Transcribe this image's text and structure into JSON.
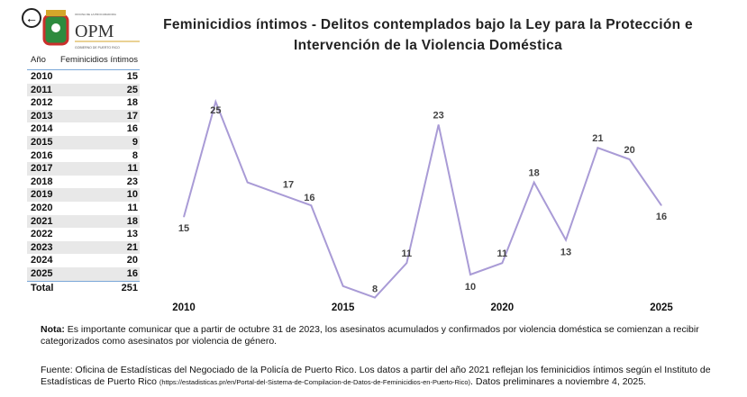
{
  "title": "Feminicidios íntimos - Delitos contemplados bajo la Ley para la Protección e Intervención de la Violencia Doméstica",
  "logo": {
    "text": "OPM",
    "subtitle": "GOBIERNO DE PUERTO RICO",
    "top_text": "OFICINA DE LA PROCURADORA DE LAS MUJERES"
  },
  "table": {
    "headers": [
      "Año",
      "Feminicidios íntimos"
    ],
    "rows": [
      [
        "2010",
        "15"
      ],
      [
        "2011",
        "25"
      ],
      [
        "2012",
        "18"
      ],
      [
        "2013",
        "17"
      ],
      [
        "2014",
        "16"
      ],
      [
        "2015",
        "9"
      ],
      [
        "2016",
        "8"
      ],
      [
        "2017",
        "11"
      ],
      [
        "2018",
        "23"
      ],
      [
        "2019",
        "10"
      ],
      [
        "2020",
        "11"
      ],
      [
        "2021",
        "18"
      ],
      [
        "2022",
        "13"
      ],
      [
        "2023",
        "21"
      ],
      [
        "2024",
        "20"
      ],
      [
        "2025",
        "16"
      ]
    ],
    "total_label": "Total",
    "total_value": "251"
  },
  "chart_data": {
    "type": "line",
    "title": "",
    "xlabel": "",
    "ylabel": "",
    "x": [
      2010,
      2011,
      2012,
      2013,
      2014,
      2015,
      2016,
      2017,
      2018,
      2019,
      2020,
      2021,
      2022,
      2023,
      2024,
      2025
    ],
    "values": [
      15,
      25,
      18,
      17,
      16,
      9,
      8,
      11,
      23,
      10,
      11,
      18,
      13,
      21,
      20,
      16
    ],
    "x_ticks": [
      "2010",
      "2015",
      "2020",
      "2025"
    ],
    "xlim": [
      2010,
      2025
    ],
    "grid": false,
    "line_color": "#a99bd6"
  },
  "note": {
    "label": "Nota:",
    "text": " Es importante comunicar que a partir de octubre 31 de 2023, los asesinatos acumulados y confirmados por violencia doméstica se comienzan a recibir categorizados como asesinatos por violencia de género."
  },
  "source": {
    "text": "Fuente: Oficina de Estadísticas del Negociado de la Policía de Puerto Rico. Los datos a partir del año 2021 reflejan los feminicidios íntimos según el Instituto de Estadísticas de Puerto Rico ",
    "url": "(https://estadisticas.pr/en/Portal-del-Sistema-de-Compilacion-de-Datos-de-Feminicidios-en-Puerto-Rico)",
    "tail": ". Datos preliminares a noviembre 4, 2025."
  }
}
